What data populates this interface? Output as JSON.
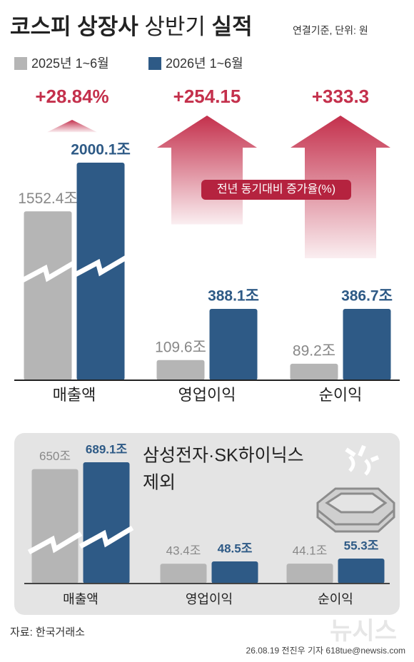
{
  "header": {
    "title_parts": [
      "코스피 상장사",
      "상반기",
      "실적"
    ],
    "unit_note": "연결기준, 단위: 원"
  },
  "chart_data": [
    {
      "type": "bar",
      "categories": [
        "매출액",
        "영업이익",
        "순이익"
      ],
      "series": [
        {
          "name": "2025년 1~6월",
          "color": "#b5b5b5",
          "values": [
            1552.4,
            109.6,
            89.2
          ],
          "value_labels": [
            "1552.4조",
            "109.6조",
            "89.2조"
          ]
        },
        {
          "name": "2026년 1~6월",
          "color": "#2e5a86",
          "values": [
            2000.1,
            388.1,
            386.7
          ],
          "value_labels": [
            "2000.1조",
            "388.1조",
            "386.7조"
          ]
        }
      ],
      "growth": {
        "label": "전년 동기대비 증가율(%)",
        "color": "#c4304c",
        "values": [
          28.84,
          254.15,
          333.3
        ],
        "value_labels": [
          "+28.84%",
          "+254.15",
          "+333.3"
        ]
      }
    },
    {
      "type": "bar",
      "title_lines": [
        "삼성전자·SK하이닉스",
        "제외"
      ],
      "categories": [
        "매출액",
        "영업이익",
        "순이익"
      ],
      "series": [
        {
          "color": "#b5b5b5",
          "values": [
            650,
            43.4,
            44.1
          ],
          "value_labels": [
            "650조",
            "43.4조",
            "44.1조"
          ]
        },
        {
          "color": "#2e5a86",
          "values": [
            689.1,
            48.5,
            55.3
          ],
          "value_labels": [
            "689.1조",
            "48.5조",
            "55.3조"
          ]
        }
      ]
    }
  ],
  "source": "자료: 한국거래소",
  "credit": "26.08.19 전진우 기자 618tue@newsis.com",
  "watermark": "뉴시스"
}
